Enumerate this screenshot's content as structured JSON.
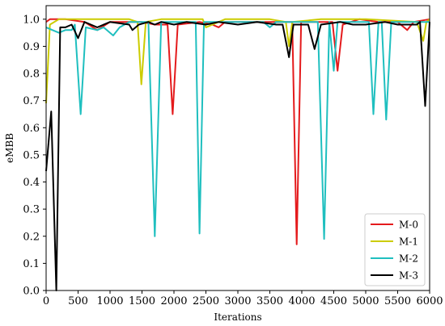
{
  "chart_data": {
    "type": "line",
    "title": "",
    "xlabel": "Iterations",
    "ylabel": "eMBB",
    "xlim": [
      0,
      6000
    ],
    "ylim": [
      0,
      1.05
    ],
    "xticks": [
      0,
      500,
      1000,
      1500,
      2000,
      2500,
      3000,
      3500,
      4000,
      4500,
      5000,
      5500,
      6000
    ],
    "yticks": [
      0.0,
      0.1,
      0.2,
      0.3,
      0.4,
      0.5,
      0.6,
      0.7,
      0.8,
      0.9,
      1.0
    ],
    "grid": false,
    "legend_position": "bottom-right",
    "series": [
      {
        "name": "M-0",
        "color": "#e41a1c",
        "points": [
          [
            0,
            0.99
          ],
          [
            60,
            1.0
          ],
          [
            300,
            1.0
          ],
          [
            600,
            0.99
          ],
          [
            800,
            0.96
          ],
          [
            1000,
            0.99
          ],
          [
            1200,
            0.99
          ],
          [
            1500,
            0.99
          ],
          [
            1700,
            0.98
          ],
          [
            1900,
            0.98
          ],
          [
            1980,
            0.65
          ],
          [
            2060,
            0.98
          ],
          [
            2400,
            0.99
          ],
          [
            2600,
            0.98
          ],
          [
            2700,
            0.97
          ],
          [
            2800,
            0.99
          ],
          [
            3000,
            0.99
          ],
          [
            3500,
            0.99
          ],
          [
            3700,
            0.99
          ],
          [
            3850,
            0.99
          ],
          [
            3920,
            0.17
          ],
          [
            3990,
            0.99
          ],
          [
            4200,
            0.99
          ],
          [
            4480,
            0.99
          ],
          [
            4560,
            0.81
          ],
          [
            4640,
            0.98
          ],
          [
            4900,
            1.0
          ],
          [
            5200,
            0.99
          ],
          [
            5500,
            0.99
          ],
          [
            5650,
            0.96
          ],
          [
            5750,
            0.99
          ],
          [
            6000,
            1.0
          ]
        ]
      },
      {
        "name": "M-1",
        "color": "#cccc00",
        "points": [
          [
            0,
            0.69
          ],
          [
            60,
            0.98
          ],
          [
            200,
            1.0
          ],
          [
            700,
            1.0
          ],
          [
            1300,
            1.0
          ],
          [
            1430,
            0.99
          ],
          [
            1490,
            0.76
          ],
          [
            1560,
            0.99
          ],
          [
            1800,
            1.0
          ],
          [
            2450,
            1.0
          ],
          [
            2500,
            0.97
          ],
          [
            2800,
            1.0
          ],
          [
            3500,
            1.0
          ],
          [
            3750,
            0.99
          ],
          [
            3800,
            0.9
          ],
          [
            3850,
            0.99
          ],
          [
            4300,
            1.0
          ],
          [
            5000,
            1.0
          ],
          [
            5800,
            0.99
          ],
          [
            5900,
            0.92
          ],
          [
            5950,
            0.99
          ],
          [
            6000,
            1.0
          ]
        ]
      },
      {
        "name": "M-2",
        "color": "#1fbfbf",
        "points": [
          [
            0,
            0.97
          ],
          [
            100,
            0.96
          ],
          [
            200,
            0.95
          ],
          [
            300,
            0.96
          ],
          [
            400,
            0.96
          ],
          [
            450,
            0.98
          ],
          [
            540,
            0.65
          ],
          [
            620,
            0.97
          ],
          [
            800,
            0.96
          ],
          [
            900,
            0.97
          ],
          [
            1050,
            0.94
          ],
          [
            1150,
            0.97
          ],
          [
            1300,
            0.99
          ],
          [
            1600,
            0.99
          ],
          [
            1700,
            0.2
          ],
          [
            1800,
            0.99
          ],
          [
            2200,
            0.99
          ],
          [
            2340,
            0.99
          ],
          [
            2400,
            0.21
          ],
          [
            2470,
            0.99
          ],
          [
            3000,
            0.99
          ],
          [
            3400,
            0.99
          ],
          [
            3500,
            0.97
          ],
          [
            3600,
            0.99
          ],
          [
            4250,
            0.99
          ],
          [
            4350,
            0.19
          ],
          [
            4430,
            0.99
          ],
          [
            4500,
            0.81
          ],
          [
            4560,
            0.99
          ],
          [
            5050,
            0.99
          ],
          [
            5120,
            0.65
          ],
          [
            5200,
            0.99
          ],
          [
            5250,
            0.99
          ],
          [
            5320,
            0.63
          ],
          [
            5400,
            0.99
          ],
          [
            6000,
            0.99
          ]
        ]
      },
      {
        "name": "M-3",
        "color": "#000000",
        "points": [
          [
            0,
            0.44
          ],
          [
            80,
            0.66
          ],
          [
            160,
            0.0
          ],
          [
            220,
            0.97
          ],
          [
            300,
            0.97
          ],
          [
            400,
            0.98
          ],
          [
            500,
            0.93
          ],
          [
            600,
            0.99
          ],
          [
            700,
            0.98
          ],
          [
            800,
            0.97
          ],
          [
            1000,
            0.99
          ],
          [
            1300,
            0.98
          ],
          [
            1350,
            0.96
          ],
          [
            1450,
            0.98
          ],
          [
            1600,
            0.99
          ],
          [
            1700,
            0.98
          ],
          [
            1800,
            0.99
          ],
          [
            2000,
            0.98
          ],
          [
            2200,
            0.99
          ],
          [
            2500,
            0.98
          ],
          [
            2700,
            0.99
          ],
          [
            3000,
            0.98
          ],
          [
            3300,
            0.99
          ],
          [
            3600,
            0.98
          ],
          [
            3700,
            0.98
          ],
          [
            3800,
            0.86
          ],
          [
            3870,
            0.98
          ],
          [
            4100,
            0.98
          ],
          [
            4200,
            0.89
          ],
          [
            4300,
            0.98
          ],
          [
            4600,
            0.99
          ],
          [
            4800,
            0.98
          ],
          [
            5000,
            0.98
          ],
          [
            5300,
            0.99
          ],
          [
            5500,
            0.98
          ],
          [
            5800,
            0.98
          ],
          [
            5850,
            0.99
          ],
          [
            5930,
            0.68
          ],
          [
            6000,
            0.99
          ]
        ]
      }
    ]
  }
}
